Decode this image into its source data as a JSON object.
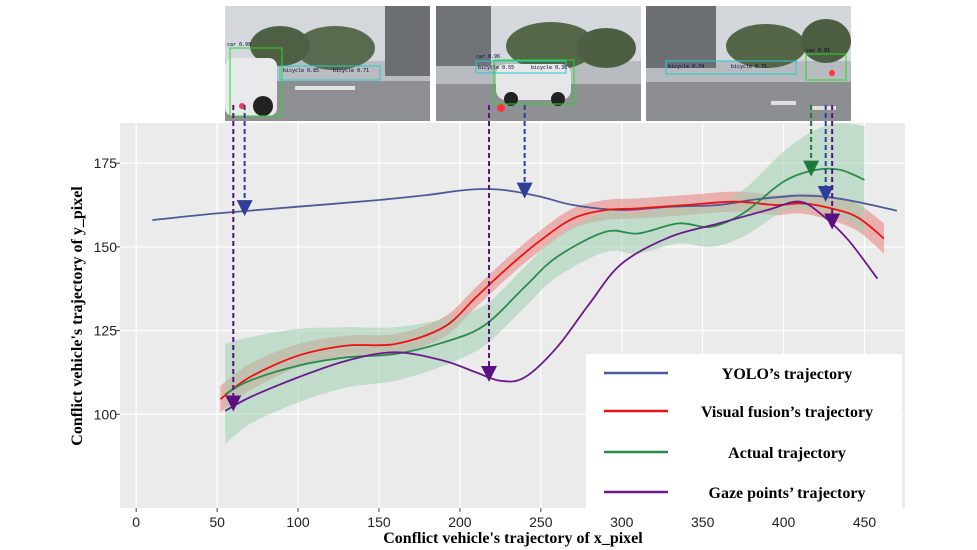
{
  "chart_data": {
    "type": "line",
    "title": "",
    "xlabel": "Conflict vehicle's trajectory of x_pixel",
    "ylabel": "Conflict vehicle's trajectory of y_pixel",
    "xlim": [
      -10,
      475
    ],
    "ylim": [
      72,
      187
    ],
    "xticks": [
      0,
      50,
      100,
      150,
      200,
      250,
      300,
      350,
      400,
      450
    ],
    "yticks": [
      100,
      125,
      150,
      175
    ],
    "grid": true,
    "legend_position": "bottom-right",
    "series": [
      {
        "name": "YOLO’s trajectory",
        "color": "#4c5a9a",
        "x": [
          10,
          50,
          100,
          150,
          180,
          200,
          215,
          230,
          250,
          270,
          300,
          330,
          360,
          380,
          400,
          410,
          425,
          445,
          470
        ],
        "y": [
          158,
          160,
          162,
          164,
          165.5,
          166.8,
          167.3,
          166.8,
          165,
          162.5,
          161,
          162,
          162.5,
          164,
          165,
          165.3,
          165,
          163.5,
          160.8
        ]
      },
      {
        "name": "Visual fusion’s trajectory",
        "color": "#ee1111",
        "band_color": "#e8807a",
        "x": [
          52,
          70,
          100,
          130,
          160,
          190,
          210,
          230,
          250,
          270,
          290,
          310,
          340,
          370,
          395,
          410,
          425,
          445,
          462
        ],
        "y": [
          104.5,
          111,
          117.5,
          120.5,
          121,
          126,
          135,
          144,
          152,
          158.5,
          161,
          161.5,
          162.5,
          163.5,
          162.5,
          163,
          162,
          159,
          152.5
        ],
        "band": [
          4,
          4,
          3.5,
          3,
          3,
          3,
          3,
          3,
          3,
          3,
          3,
          3,
          3,
          3,
          3,
          3,
          3.5,
          4,
          4.5
        ]
      },
      {
        "name": "Actual trajectory",
        "color": "#2a8c4a",
        "band_color": "#a0d0b2",
        "x": [
          55,
          70,
          100,
          130,
          160,
          190,
          215,
          240,
          260,
          290,
          310,
          335,
          355,
          375,
          400,
          420,
          435,
          450
        ],
        "y": [
          106,
          110,
          114.5,
          117,
          118,
          121.5,
          126.5,
          138,
          147,
          154.5,
          154,
          157,
          156,
          160,
          169.5,
          173,
          173,
          170
        ],
        "band": [
          15,
          13,
          11,
          9,
          8,
          7,
          6,
          6,
          6,
          6,
          6,
          6,
          6,
          7,
          9,
          12,
          14,
          16
        ]
      },
      {
        "name": "Gaze points’ trajectory",
        "color": "#6a1a8c",
        "x": [
          55,
          70,
          100,
          130,
          160,
          190,
          210,
          225,
          240,
          260,
          280,
          300,
          330,
          360,
          390,
          410,
          425,
          440,
          458
        ],
        "y": [
          101,
          105,
          111,
          116,
          118.5,
          116,
          112.5,
          110,
          111,
          120,
          133,
          145,
          153,
          157,
          161,
          163.5,
          159,
          152,
          140.5
        ]
      }
    ],
    "annotations": [
      {
        "image": 1,
        "target": "Gaze points’ trajectory",
        "x": 60
      },
      {
        "image": 1,
        "target": "YOLO’s trajectory",
        "x": 67
      },
      {
        "image": 2,
        "target": "Gaze points’ trajectory",
        "x": 218
      },
      {
        "image": 2,
        "target": "YOLO’s trajectory",
        "x": 240
      },
      {
        "image": 3,
        "target": "Actual trajectory",
        "x": 417
      },
      {
        "image": 3,
        "target": "YOLO’s trajectory",
        "x": 426
      },
      {
        "image": 3,
        "target": "Gaze points’ trajectory",
        "x": 430
      }
    ]
  },
  "images": [
    {
      "labels": [
        "car 0.98",
        "bicycle 0.85",
        "bicycle 0.71"
      ]
    },
    {
      "labels": [
        "car 0.96",
        "bicycle 0.55",
        "bicycle 0.36"
      ]
    },
    {
      "labels": [
        "car 0.91",
        "bicycle 0.74",
        "bicycle 0.71"
      ]
    }
  ]
}
